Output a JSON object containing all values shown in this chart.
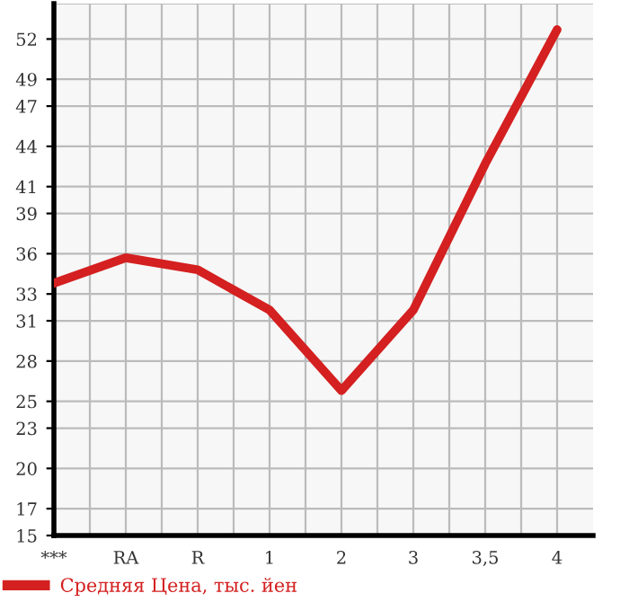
{
  "chart_data": {
    "type": "line",
    "categories": [
      "***",
      "RA",
      "R",
      "1",
      "2",
      "3",
      "3,5",
      "4"
    ],
    "series": [
      {
        "name": "Средняя Цена, тыс. йен",
        "color": "#d42020",
        "values": [
          33.8,
          35.7,
          34.8,
          31.8,
          25.8,
          31.8,
          42.7,
          52.7
        ]
      }
    ],
    "ylim": [
      15,
      54.64
    ],
    "yticks": [
      15,
      17,
      20,
      23,
      25,
      28,
      31,
      33,
      36,
      39,
      41,
      44,
      47,
      49,
      52
    ],
    "grid": true,
    "legend": "bottom",
    "marker": "none",
    "line_style": "solid"
  }
}
